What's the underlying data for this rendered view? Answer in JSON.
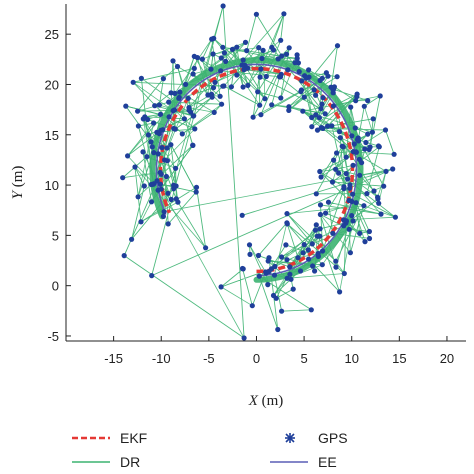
{
  "chart_data": {
    "type": "scatter",
    "title": "",
    "xlabel": "X (m)",
    "ylabel": "Y (m)",
    "xlim": [
      -20,
      22
    ],
    "ylim": [
      -5.5,
      28
    ],
    "xticks": [
      -15,
      -10,
      -5,
      0,
      5,
      10,
      15,
      20
    ],
    "yticks": [
      -5,
      0,
      5,
      10,
      15,
      20,
      25
    ],
    "grid": false,
    "legend_position": "bottom",
    "series": [
      {
        "name": "EKF",
        "style": "dashed-line",
        "color": "#e53935"
      },
      {
        "name": "GPS",
        "style": "markers",
        "color": "#1f3f9a"
      },
      {
        "name": "DR",
        "style": "line",
        "color": "#3cb371"
      },
      {
        "name": "EE",
        "style": "line",
        "color": "#5a5fb5"
      }
    ],
    "trajectory": {
      "description_note": "",
      "center": [
        0,
        11.5
      ],
      "radius": 10.5,
      "start_angle_deg": -90,
      "end_angle_deg": 205,
      "gps_spread_m": 2.2
    }
  }
}
